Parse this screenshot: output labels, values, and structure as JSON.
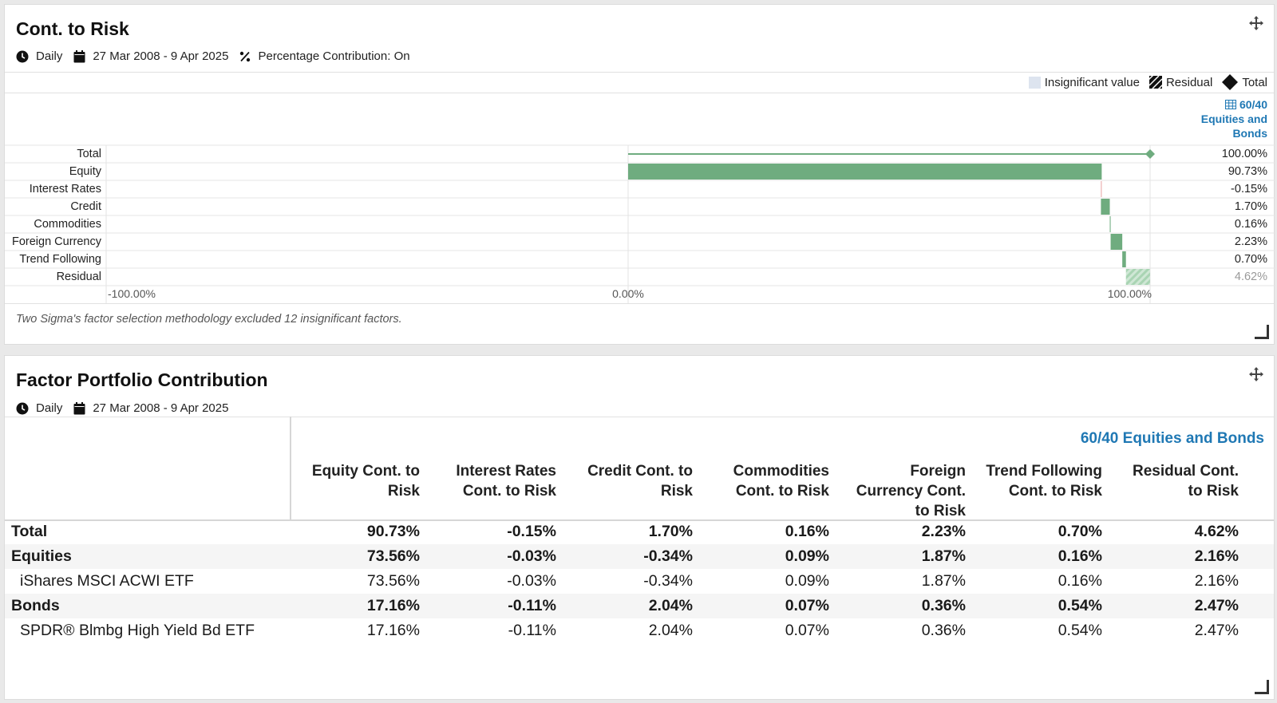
{
  "risk_panel": {
    "title": "Cont. to Risk",
    "frequency": "Daily",
    "date_range": "27 Mar 2008 - 9 Apr 2025",
    "percentage_contribution": "Percentage Contribution: On",
    "legend": {
      "insignificant": "Insignificant value",
      "residual": "Residual",
      "total": "Total"
    },
    "column_header": "60/40 Equities and Bonds",
    "note": "Two Sigma's factor selection methodology excluded 12 insignificant factors."
  },
  "chart_data": {
    "type": "bar",
    "orientation": "horizontal-waterfall",
    "categories": [
      "Total",
      "Equity",
      "Interest Rates",
      "Credit",
      "Commodities",
      "Foreign Currency",
      "Trend Following",
      "Residual"
    ],
    "values": [
      100.0,
      90.73,
      -0.15,
      1.7,
      0.16,
      2.23,
      0.7,
      4.62
    ],
    "value_labels": [
      "100.00%",
      "90.73%",
      "-0.15%",
      "1.70%",
      "0.16%",
      "2.23%",
      "0.70%",
      "4.62%"
    ],
    "series_name": "60/40 Equities and Bonds",
    "xlim": [
      -100,
      100
    ],
    "x_ticks": [
      "-100.00%",
      "0.00%",
      "100.00%"
    ],
    "colors": {
      "positive": "#6fac7f",
      "negative": "#e8a0a0",
      "total_line": "#6fac7f",
      "residual": "#a9d4b3"
    }
  },
  "factor_panel": {
    "title": "Factor Portfolio Contribution",
    "frequency": "Daily",
    "date_range": "27 Mar 2008 - 9 Apr 2025",
    "group_header": "60/40 Equities and Bonds",
    "columns": [
      [
        "Equity Cont. to",
        "Risk"
      ],
      [
        "Interest Rates",
        "Cont. to Risk"
      ],
      [
        "Credit Cont. to",
        "Risk"
      ],
      [
        "Commodities",
        "Cont. to Risk"
      ],
      [
        "Foreign",
        "Currency Cont.",
        "to Risk"
      ],
      [
        "Trend Following",
        "Cont. to Risk"
      ],
      [
        "Residual Cont.",
        "to Risk"
      ]
    ],
    "rows": [
      {
        "label": "Total",
        "bold": true,
        "indent": false,
        "values": [
          "90.73%",
          "-0.15%",
          "1.70%",
          "0.16%",
          "2.23%",
          "0.70%",
          "4.62%"
        ]
      },
      {
        "label": "Equities",
        "bold": true,
        "indent": false,
        "values": [
          "73.56%",
          "-0.03%",
          "-0.34%",
          "0.09%",
          "1.87%",
          "0.16%",
          "2.16%"
        ]
      },
      {
        "label": "iShares MSCI ACWI ETF",
        "bold": false,
        "indent": true,
        "values": [
          "73.56%",
          "-0.03%",
          "-0.34%",
          "0.09%",
          "1.87%",
          "0.16%",
          "2.16%"
        ]
      },
      {
        "label": "Bonds",
        "bold": true,
        "indent": false,
        "values": [
          "17.16%",
          "-0.11%",
          "2.04%",
          "0.07%",
          "0.36%",
          "0.54%",
          "2.47%"
        ]
      },
      {
        "label": "SPDR® Blmbg High Yield Bd ETF",
        "bold": false,
        "indent": true,
        "values": [
          "17.16%",
          "-0.11%",
          "2.04%",
          "0.07%",
          "0.36%",
          "0.54%",
          "2.47%"
        ]
      }
    ]
  }
}
